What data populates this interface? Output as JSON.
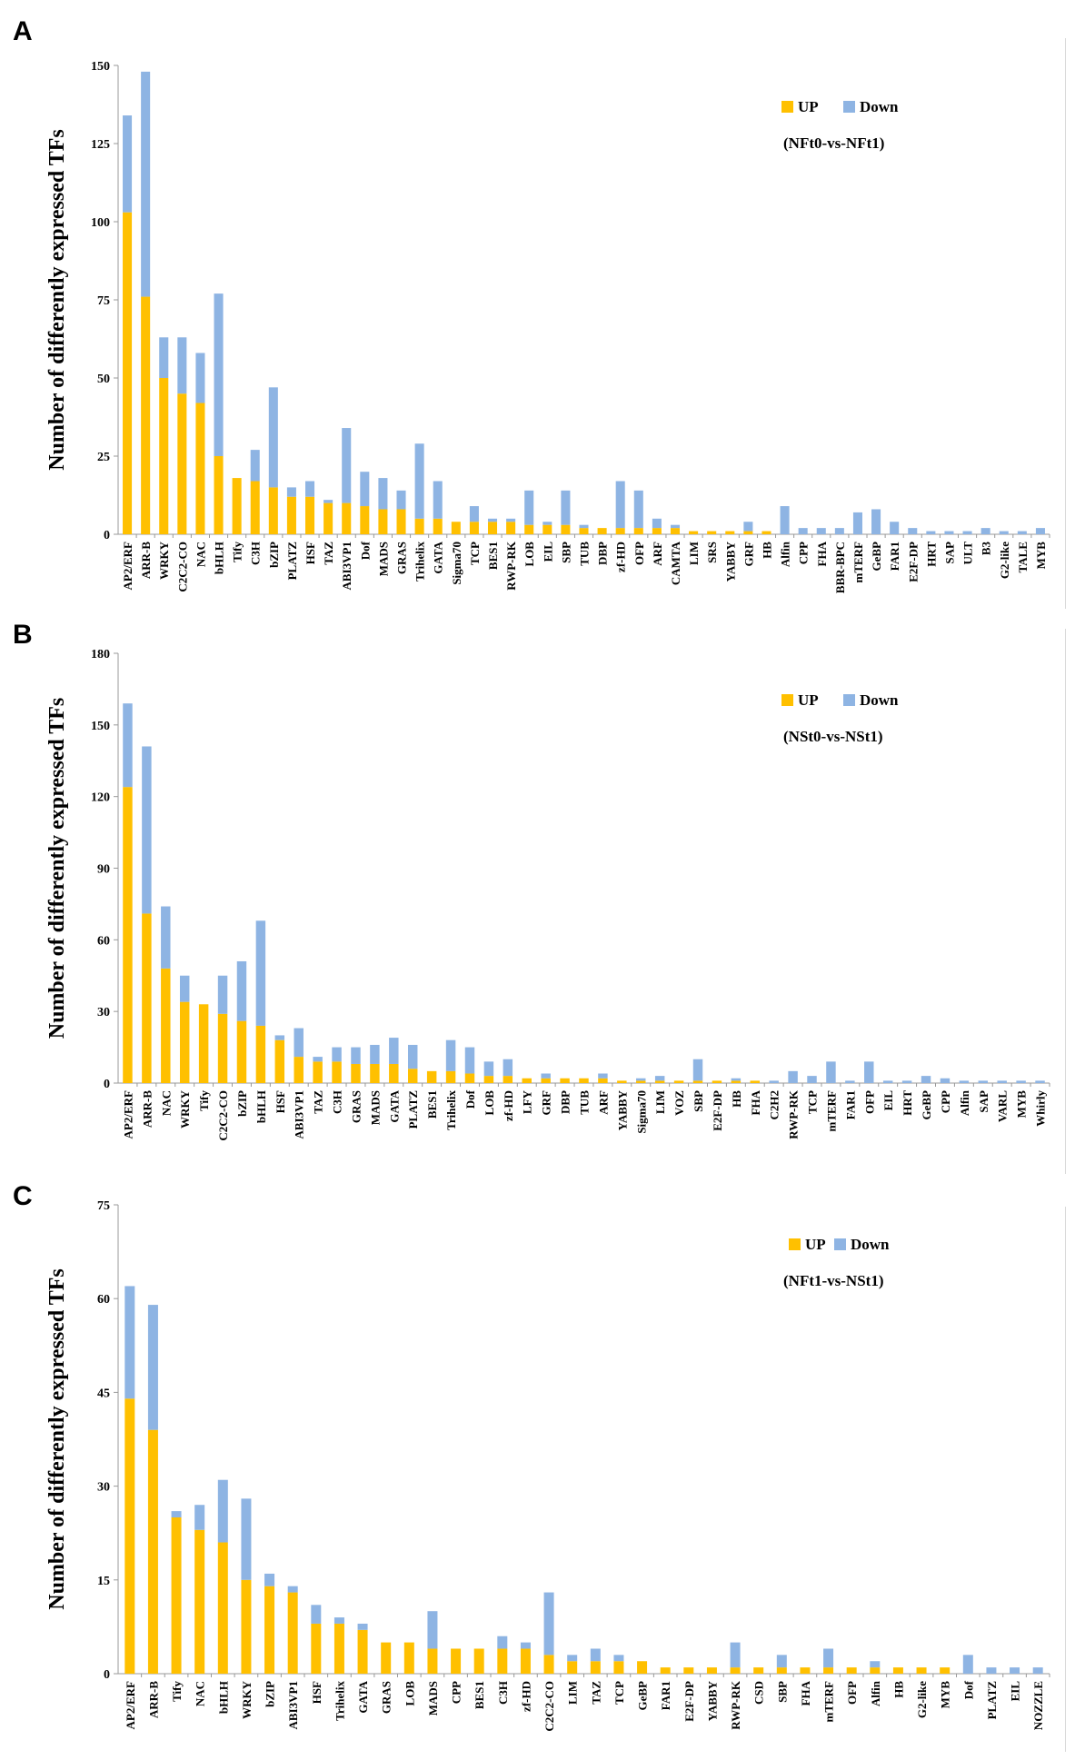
{
  "colors": {
    "up": "#FFC000",
    "down": "#8EB4E3",
    "axis": "#999999",
    "text": "#000000"
  },
  "chart_data": [
    {
      "type": "bar",
      "stacked": true,
      "panel_label": "A",
      "comparison": "(NFt0-vs-NFt1)",
      "ylabel": "Number of differently expressed TFs",
      "ylim": [
        0,
        150
      ],
      "yticks": [
        0,
        25,
        50,
        75,
        100,
        125,
        150
      ],
      "legend": [
        "UP",
        "Down"
      ],
      "legend_position": "top-right",
      "categories": [
        "AP2/ERF",
        "ARR-B",
        "WRKY",
        "C2C2-CO",
        "NAC",
        "bHLH",
        "Tify",
        "C3H",
        "bZIP",
        "PLATZ",
        "HSF",
        "TAZ",
        "ABI3VP1",
        "Dof",
        "MADS",
        "GRAS",
        "Trihelix",
        "GATA",
        "Sigma70",
        "TCP",
        "BES1",
        "RWP-RK",
        "LOB",
        "EIL",
        "SBP",
        "TUB",
        "DBP",
        "zf-HD",
        "OFP",
        "ARF",
        "CAMTA",
        "LIM",
        "SRS",
        "YABBY",
        "GRF",
        "HB",
        "Alfin",
        "CPP",
        "FHA",
        "BBR-BPC",
        "mTERF",
        "GeBP",
        "FAR1",
        "E2F-DP",
        "HRT",
        "SAP",
        "ULT",
        "B3",
        "G2-like",
        "TALE",
        "MYB"
      ],
      "series": [
        {
          "name": "UP",
          "values": [
            103,
            76,
            50,
            45,
            42,
            25,
            18,
            17,
            15,
            12,
            12,
            10,
            10,
            9,
            8,
            8,
            5,
            5,
            4,
            4,
            4,
            4,
            3,
            3,
            3,
            2,
            2,
            2,
            2,
            2,
            2,
            1,
            1,
            1,
            1,
            1,
            0,
            0,
            0,
            0,
            0,
            0,
            0,
            0,
            0,
            0,
            0,
            0,
            0,
            0,
            0
          ]
        },
        {
          "name": "Down",
          "values": [
            31,
            72,
            13,
            18,
            16,
            52,
            0,
            10,
            32,
            3,
            5,
            1,
            24,
            11,
            10,
            6,
            24,
            12,
            0,
            5,
            1,
            1,
            11,
            1,
            11,
            1,
            0,
            15,
            12,
            3,
            1,
            0,
            0,
            0,
            3,
            0,
            9,
            2,
            2,
            2,
            7,
            8,
            4,
            2,
            1,
            1,
            1,
            2,
            1,
            1,
            2
          ]
        }
      ]
    },
    {
      "type": "bar",
      "stacked": true,
      "panel_label": "B",
      "comparison": "(NSt0-vs-NSt1)",
      "ylabel": "Number of differently expressed TFs",
      "ylim": [
        0,
        180
      ],
      "yticks": [
        0,
        30,
        60,
        90,
        120,
        150,
        180
      ],
      "legend": [
        "UP",
        "Down"
      ],
      "legend_position": "top-right",
      "categories": [
        "AP2/ERF",
        "ARR-B",
        "NAC",
        "WRKY",
        "Tify",
        "C2C2-CO",
        "bZIP",
        "bHLH",
        "HSF",
        "ABI3VP1",
        "TAZ",
        "C3H",
        "GRAS",
        "MADS",
        "GATA",
        "PLATZ",
        "BES1",
        "Trihelix",
        "Dof",
        "LOB",
        "zf-HD",
        "LFY",
        "GRF",
        "DBP",
        "TUB",
        "ARF",
        "YABBY",
        "Sigma70",
        "LIM",
        "VOZ",
        "SBP",
        "E2F-DP",
        "HB",
        "FHA",
        "C2H2",
        "RWP-RK",
        "TCP",
        "mTERF",
        "FAR1",
        "OFP",
        "EIL",
        "HRT",
        "GeBP",
        "CPP",
        "Alfin",
        "SAP",
        "VARL",
        "MYB",
        "Whirly"
      ],
      "series": [
        {
          "name": "UP",
          "values": [
            124,
            71,
            48,
            34,
            33,
            29,
            26,
            24,
            18,
            11,
            9,
            9,
            8,
            8,
            8,
            6,
            5,
            5,
            4,
            3,
            3,
            2,
            2,
            2,
            2,
            2,
            1,
            1,
            1,
            1,
            1,
            1,
            1,
            1,
            0,
            0,
            0,
            0,
            0,
            0,
            0,
            0,
            0,
            0,
            0,
            0,
            0,
            0,
            0
          ]
        },
        {
          "name": "Down",
          "values": [
            35,
            70,
            26,
            11,
            0,
            16,
            25,
            44,
            2,
            12,
            2,
            6,
            7,
            8,
            11,
            10,
            0,
            13,
            11,
            6,
            7,
            0,
            2,
            0,
            0,
            2,
            0,
            1,
            2,
            0,
            9,
            0,
            1,
            0,
            1,
            5,
            3,
            9,
            1,
            9,
            1,
            1,
            3,
            2,
            1,
            1,
            1,
            1,
            1
          ]
        }
      ]
    },
    {
      "type": "bar",
      "stacked": true,
      "panel_label": "C",
      "comparison": "(NFt1-vs-NSt1)",
      "ylabel": "Number of differently expressed TFs",
      "ylim": [
        0,
        75
      ],
      "yticks": [
        0,
        15,
        30,
        45,
        60,
        75
      ],
      "legend": [
        "UP",
        "Down"
      ],
      "legend_position": "top-right",
      "categories": [
        "AP2/ERF",
        "ARR-B",
        "Tify",
        "NAC",
        "bHLH",
        "WRKY",
        "bZIP",
        "ABI3VP1",
        "HSF",
        "Trihelix",
        "GATA",
        "GRAS",
        "LOB",
        "MADS",
        "CPP",
        "BES1",
        "C3H",
        "zf-HD",
        "C2C2-CO",
        "LIM",
        "TAZ",
        "TCP",
        "GeBP",
        "FAR1",
        "E2F-DP",
        "YABBY",
        "RWP-RK",
        "CSD",
        "SBP",
        "FHA",
        "mTERF",
        "OFP",
        "Alfin",
        "HB",
        "G2-like",
        "MYB",
        "Dof",
        "PLATZ",
        "EIL",
        "NOZZLE"
      ],
      "series": [
        {
          "name": "UP",
          "values": [
            44,
            39,
            25,
            23,
            21,
            15,
            14,
            13,
            8,
            8,
            7,
            5,
            5,
            4,
            4,
            4,
            4,
            4,
            3,
            2,
            2,
            2,
            2,
            1,
            1,
            1,
            1,
            1,
            1,
            1,
            1,
            1,
            1,
            1,
            1,
            1,
            0,
            0,
            0,
            0
          ]
        },
        {
          "name": "Down",
          "values": [
            18,
            20,
            1,
            4,
            10,
            13,
            2,
            1,
            3,
            1,
            1,
            0,
            0,
            6,
            0,
            0,
            2,
            1,
            10,
            1,
            2,
            1,
            0,
            0,
            0,
            0,
            4,
            0,
            2,
            0,
            3,
            0,
            1,
            0,
            0,
            0,
            3,
            1,
            1,
            1
          ]
        }
      ]
    }
  ]
}
